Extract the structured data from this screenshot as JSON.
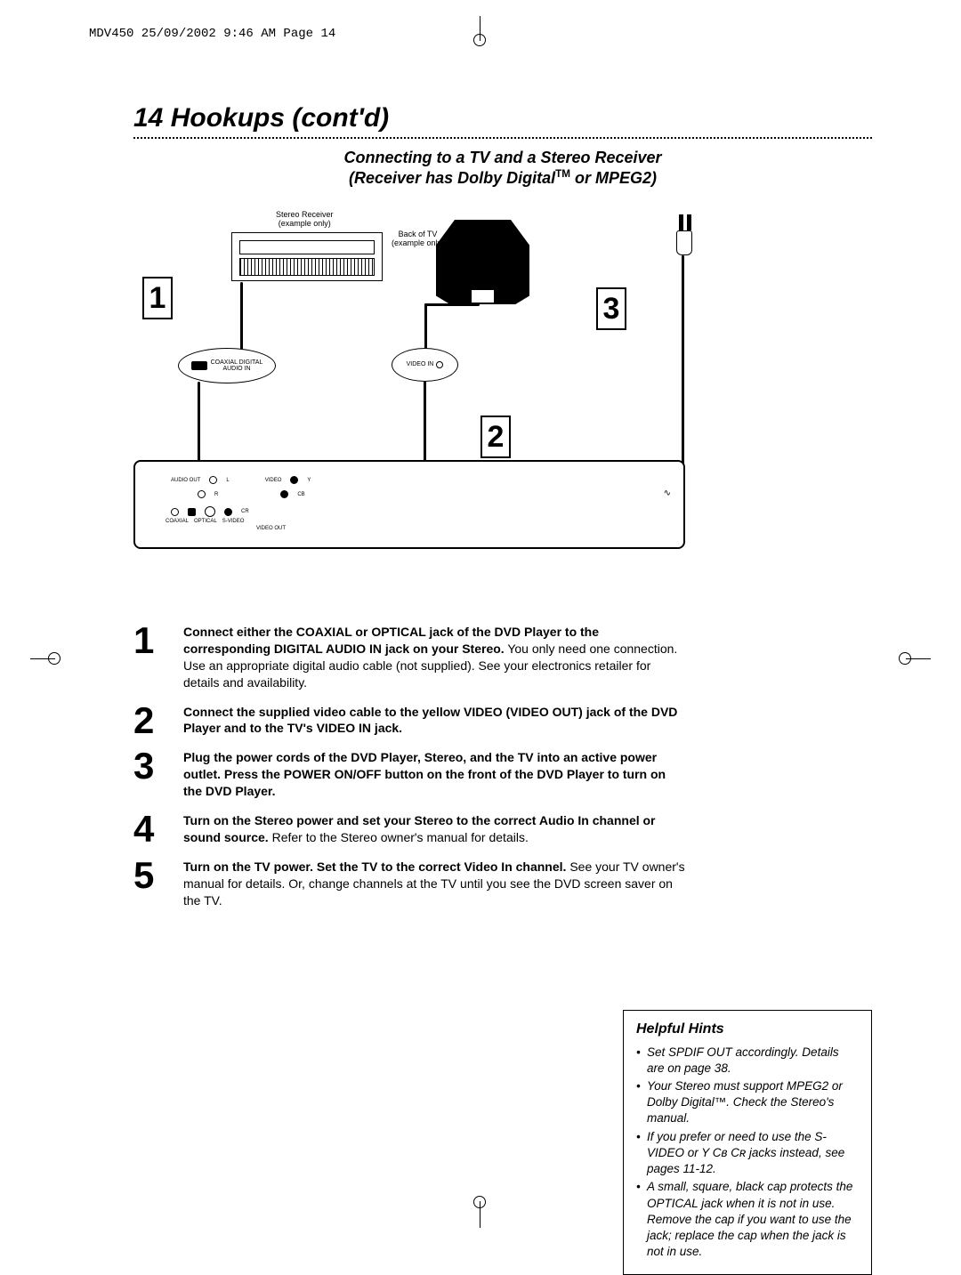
{
  "meta": {
    "header": "MDV450  25/09/2002  9:46 AM  Page 14"
  },
  "title": "14  Hookups (cont'd)",
  "subtitle": {
    "line1": "Connecting to a TV and a Stereo Receiver",
    "line2_prefix": "(Receiver has Dolby Digital",
    "line2_suffix": " or MPEG2)"
  },
  "diagram": {
    "receiver_label": "Stereo Receiver\n(example only)",
    "tv_label": "Back of TV\n(example only)",
    "conn_audio_label": "COAXIAL DIGITAL\nAUDIO IN",
    "conn_video_label": "VIDEO IN",
    "callouts": {
      "c1": "1",
      "c2": "2",
      "c3": "3"
    },
    "dvd_labels": {
      "audio_out": "AUDIO OUT",
      "L": "L",
      "R": "R",
      "video": "VIDEO",
      "Y": "Y",
      "CB": "CB",
      "CR": "CR",
      "coaxial": "COAXIAL",
      "optical": "OPTICAL",
      "svideo": "S-VIDEO",
      "video_out": "VIDEO OUT"
    }
  },
  "steps": [
    {
      "num": "1",
      "html": "<b>Connect either the COAXIAL or OPTICAL jack of the DVD Player to the corresponding DIGITAL AUDIO IN jack on your Stereo.</b> You only need one connection. Use an appropriate digital audio cable (not supplied). See your electronics retailer for details and availability."
    },
    {
      "num": "2",
      "html": "<b>Connect the supplied video cable to the yellow VIDEO (VIDEO OUT) jack of the DVD Player and to the TV's VIDEO IN jack.</b>"
    },
    {
      "num": "3",
      "html": "<b>Plug the power cords of the DVD Player, Stereo, and the TV into an active power outlet. Press the POWER ON/OFF button on the front of the DVD Player to turn on the DVD Player.</b>"
    },
    {
      "num": "4",
      "html": "<b>Turn on the Stereo power and set your Stereo to the correct Audio In channel or sound source.</b> Refer to the Stereo owner's manual for details."
    },
    {
      "num": "5",
      "html": "<b>Turn on the TV power. Set the TV to the correct Video In channel.</b> See your TV owner's manual for details. Or, change channels at the TV until you see the DVD screen saver on the TV."
    }
  ],
  "hints": {
    "title": "Helpful Hints",
    "items": [
      "Set SPDIF OUT accordingly. Details are on page 38.",
      "Your Stereo must support MPEG2 or Dolby Digital™. Check the Stereo's manual.",
      "If you prefer or need to use the S-VIDEO or Y Cʙ Cʀ jacks instead, see pages 11-12.",
      "A small, square, black cap protects the OPTICAL jack when it is not in use. Remove the cap if you want to use the jack; replace the cap when the jack is not in use."
    ]
  },
  "style": {
    "page_bg": "#ffffff",
    "text_color": "#000000",
    "title_fontsize": 30,
    "subtitle_fontsize": 18,
    "step_num_fontsize": 42,
    "step_text_fontsize": 14,
    "hints_fontsize": 13.5,
    "hints_title_fontsize": 16,
    "meta_fontsize": 14
  }
}
